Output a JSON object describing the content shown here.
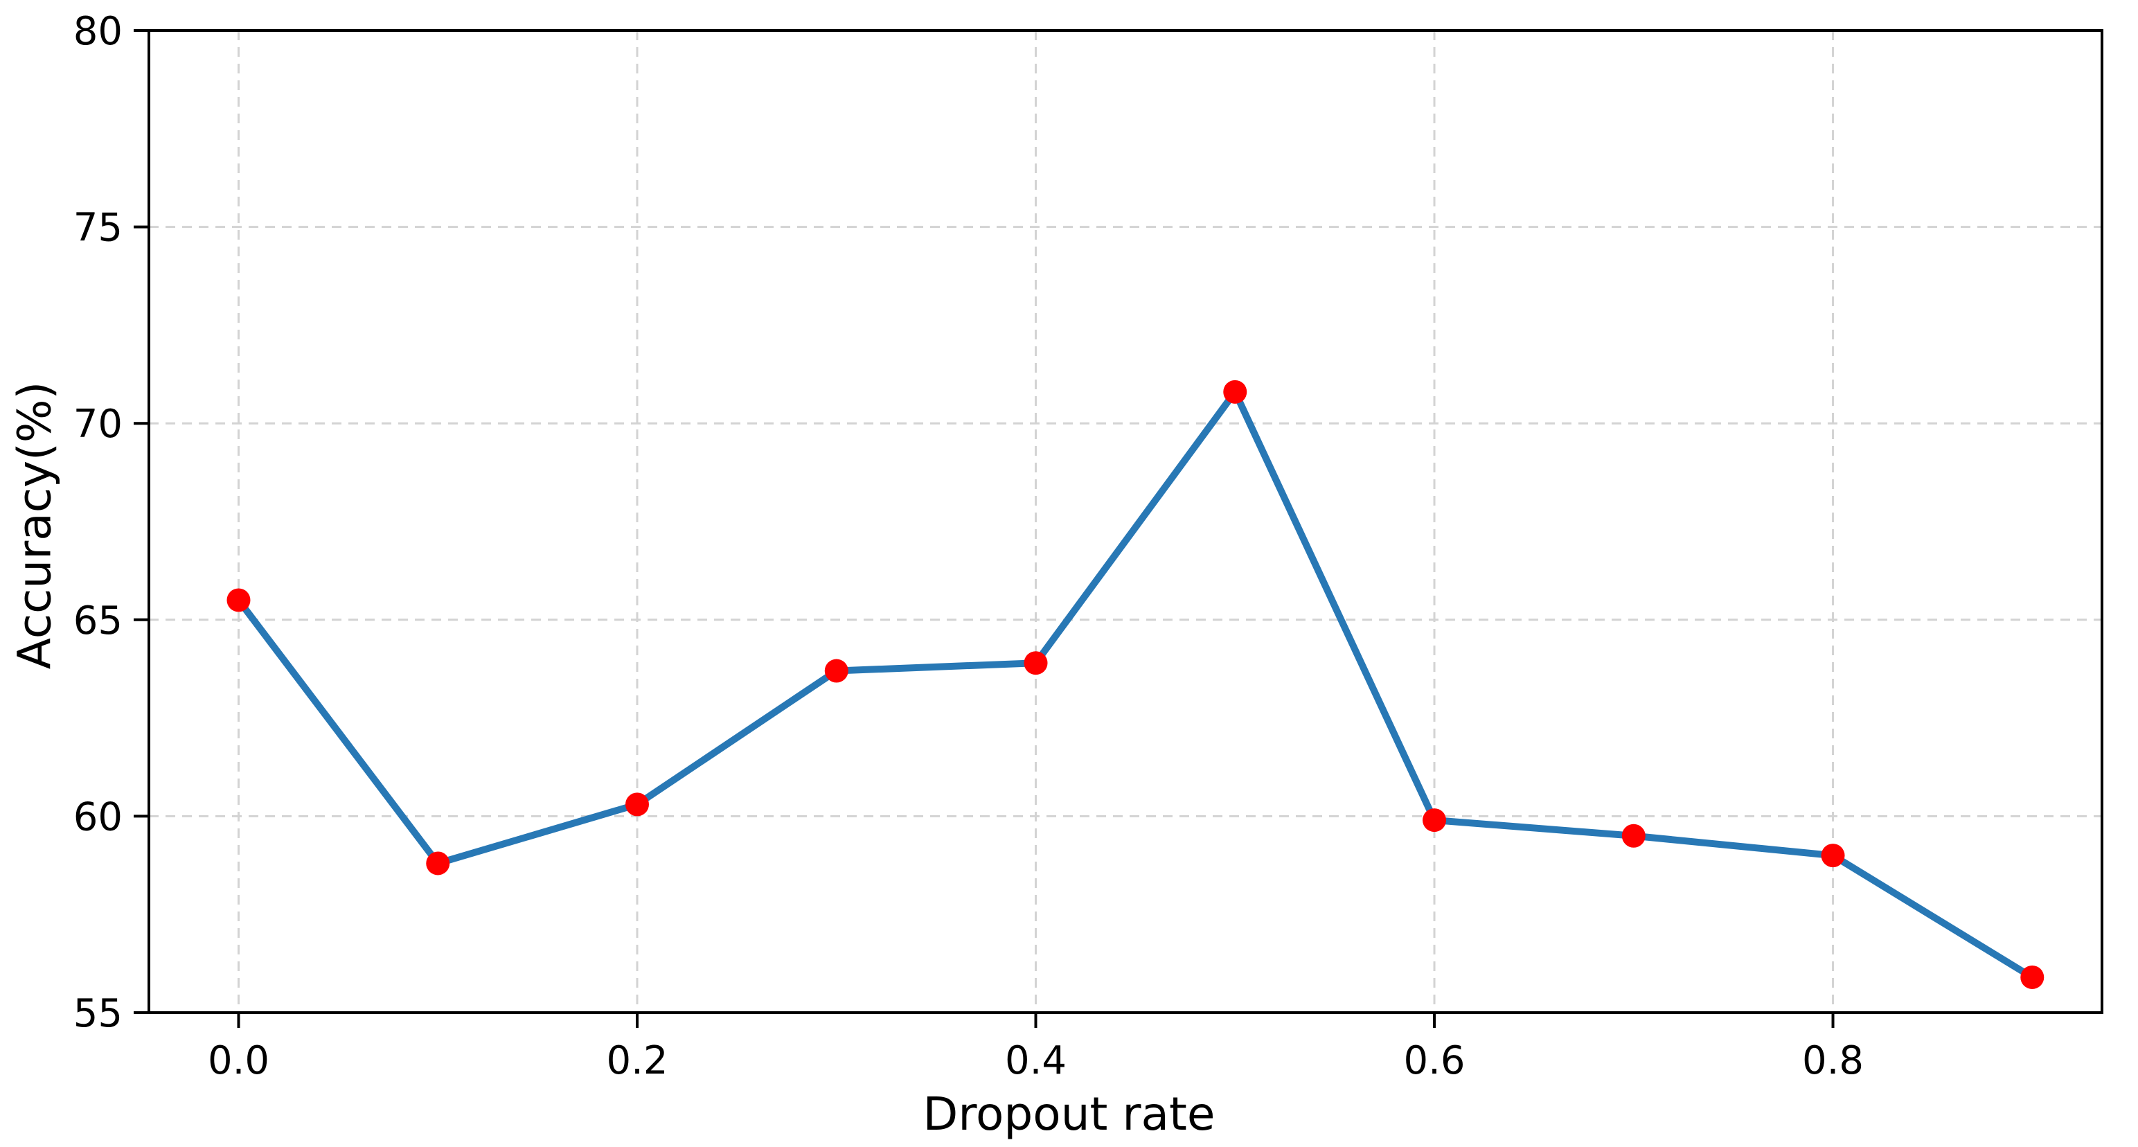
{
  "chart_data": {
    "type": "line",
    "title": "",
    "xlabel": "Dropout rate",
    "ylabel": "Accuracy(%)",
    "x": [
      0.0,
      0.1,
      0.2,
      0.3,
      0.4,
      0.5,
      0.6,
      0.7,
      0.8,
      0.9
    ],
    "series": [
      {
        "name": "accuracy",
        "values": [
          65.5,
          58.8,
          60.3,
          63.7,
          63.9,
          70.8,
          59.9,
          59.5,
          59.0,
          55.9
        ]
      }
    ],
    "xlim": [
      -0.045,
      0.935
    ],
    "ylim": [
      55,
      80
    ],
    "xticks": [
      0.0,
      0.2,
      0.4,
      0.6,
      0.8
    ],
    "xtick_labels": [
      "0.0",
      "0.2",
      "0.4",
      "0.6",
      "0.8"
    ],
    "yticks": [
      55,
      60,
      65,
      70,
      75,
      80
    ],
    "ytick_labels": [
      "55",
      "60",
      "65",
      "70",
      "75",
      "80"
    ],
    "grid": "dashed",
    "legend": "none",
    "line_color": "#2878b5",
    "marker_color": "#ff0000",
    "grid_color": "#d3d3d3",
    "axis_color": "#000000",
    "tick_label_color": "#000000",
    "background_color": "#ffffff"
  }
}
